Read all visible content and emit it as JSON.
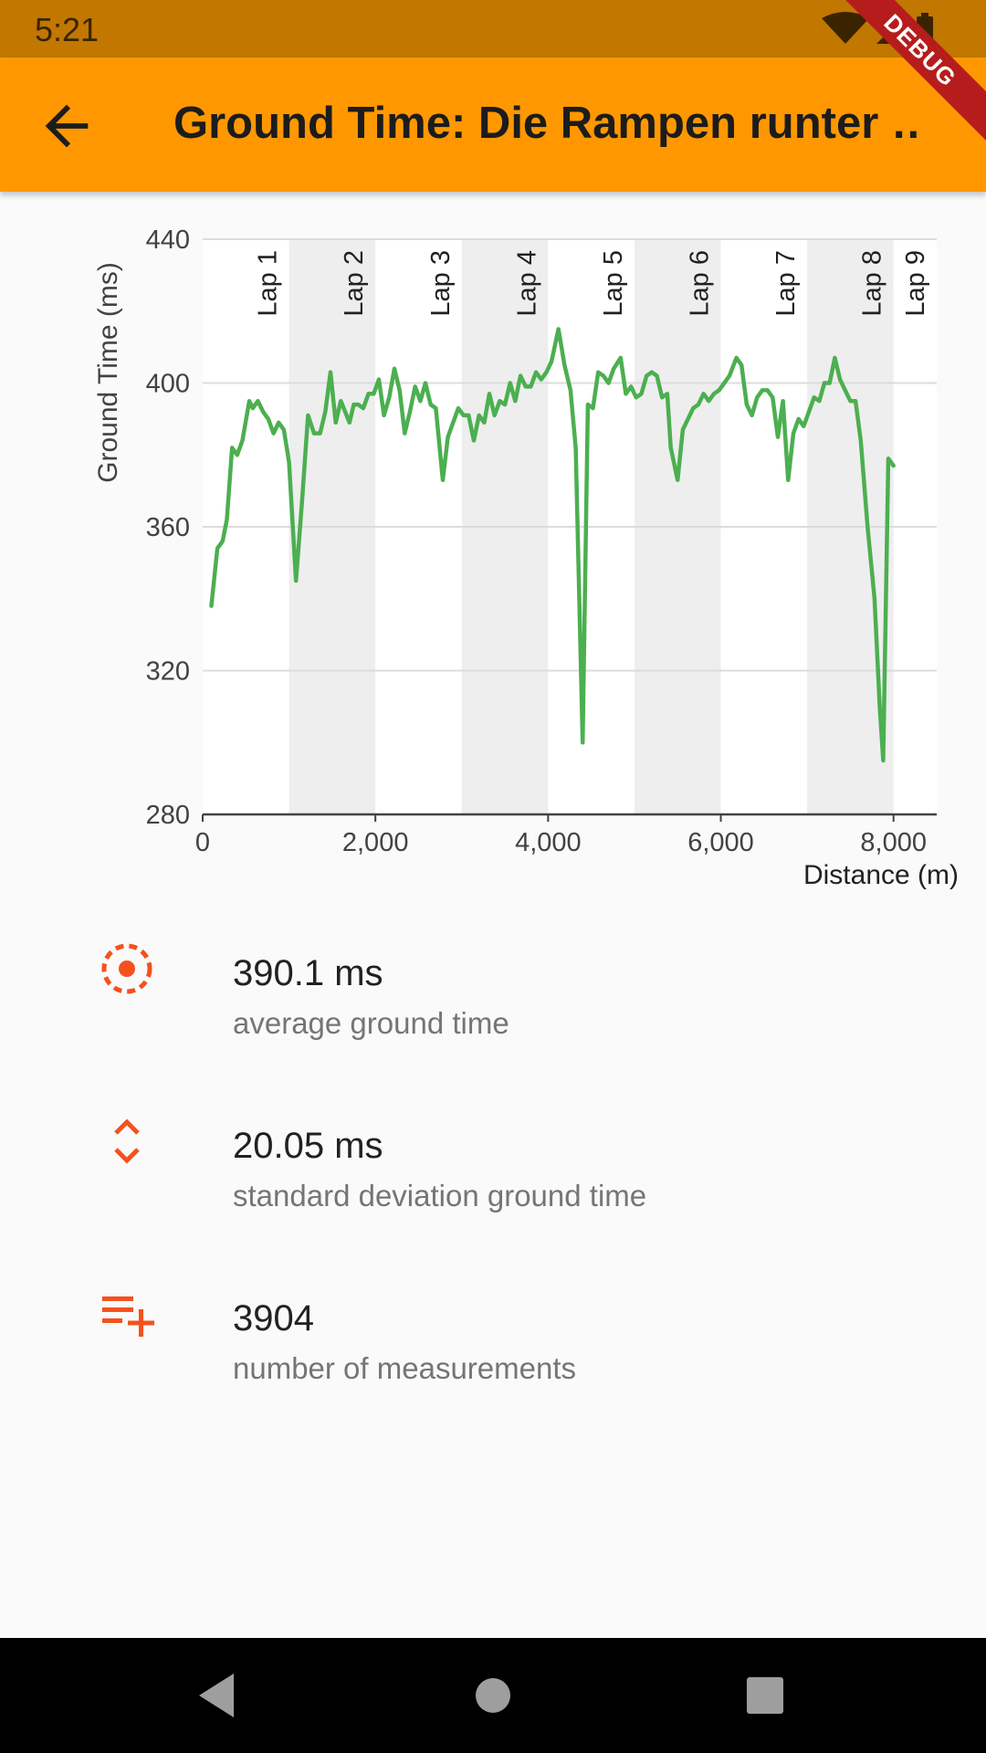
{
  "status_bar": {
    "time": "5:21"
  },
  "app_bar": {
    "title": "Ground Time: Die Rampen runter …"
  },
  "debug_banner": {
    "label": "DEBUG"
  },
  "chart_data": {
    "type": "line",
    "title": "",
    "xlabel": "Distance (m)",
    "ylabel": "Ground Time (ms)",
    "xlim": [
      0,
      8500
    ],
    "ylim": [
      280,
      440
    ],
    "xticks": [
      0,
      2000,
      4000,
      6000,
      8000
    ],
    "xtick_labels": [
      "0",
      "2,000",
      "4,000",
      "6,000",
      "8,000"
    ],
    "yticks": [
      280,
      320,
      360,
      400,
      440
    ],
    "ytick_labels": [
      "280",
      "320",
      "360",
      "400",
      "440"
    ],
    "grid": "horizontal",
    "lap_bands": [
      {
        "label": "Lap 1",
        "start": 0,
        "end": 1000,
        "shaded": false
      },
      {
        "label": "Lap 2",
        "start": 1000,
        "end": 2000,
        "shaded": true
      },
      {
        "label": "Lap 3",
        "start": 2000,
        "end": 3000,
        "shaded": false
      },
      {
        "label": "Lap 4",
        "start": 3000,
        "end": 4000,
        "shaded": true
      },
      {
        "label": "Lap 5",
        "start": 4000,
        "end": 5000,
        "shaded": false
      },
      {
        "label": "Lap 6",
        "start": 5000,
        "end": 6000,
        "shaded": true
      },
      {
        "label": "Lap 7",
        "start": 6000,
        "end": 7000,
        "shaded": false
      },
      {
        "label": "Lap 8",
        "start": 7000,
        "end": 8000,
        "shaded": true
      },
      {
        "label": "Lap 9",
        "start": 8000,
        "end": 8500,
        "shaded": false
      }
    ],
    "series": [
      {
        "color": "#4caf50",
        "points": [
          [
            100,
            338
          ],
          [
            170,
            354
          ],
          [
            230,
            356
          ],
          [
            280,
            362
          ],
          [
            340,
            382
          ],
          [
            400,
            380
          ],
          [
            460,
            384
          ],
          [
            540,
            395
          ],
          [
            580,
            393
          ],
          [
            640,
            395
          ],
          [
            700,
            392
          ],
          [
            760,
            390
          ],
          [
            820,
            386
          ],
          [
            880,
            389
          ],
          [
            940,
            387
          ],
          [
            1000,
            378
          ],
          [
            1080,
            345
          ],
          [
            1150,
            367
          ],
          [
            1220,
            391
          ],
          [
            1290,
            386
          ],
          [
            1360,
            386
          ],
          [
            1420,
            392
          ],
          [
            1480,
            403
          ],
          [
            1540,
            389
          ],
          [
            1600,
            395
          ],
          [
            1650,
            392
          ],
          [
            1700,
            389
          ],
          [
            1750,
            394
          ],
          [
            1800,
            394
          ],
          [
            1860,
            393
          ],
          [
            1920,
            397
          ],
          [
            1980,
            397
          ],
          [
            2040,
            401
          ],
          [
            2100,
            391
          ],
          [
            2160,
            396
          ],
          [
            2220,
            404
          ],
          [
            2280,
            398
          ],
          [
            2340,
            386
          ],
          [
            2400,
            392
          ],
          [
            2460,
            399
          ],
          [
            2520,
            395
          ],
          [
            2580,
            400
          ],
          [
            2640,
            394
          ],
          [
            2700,
            393
          ],
          [
            2780,
            373
          ],
          [
            2840,
            385
          ],
          [
            2900,
            389
          ],
          [
            2960,
            393
          ],
          [
            3020,
            391
          ],
          [
            3080,
            391
          ],
          [
            3140,
            384
          ],
          [
            3200,
            391
          ],
          [
            3260,
            389
          ],
          [
            3320,
            397
          ],
          [
            3380,
            391
          ],
          [
            3440,
            395
          ],
          [
            3500,
            394
          ],
          [
            3560,
            400
          ],
          [
            3620,
            395
          ],
          [
            3680,
            402
          ],
          [
            3740,
            399
          ],
          [
            3800,
            399
          ],
          [
            3860,
            403
          ],
          [
            3920,
            401
          ],
          [
            3980,
            403
          ],
          [
            4040,
            406
          ],
          [
            4120,
            415
          ],
          [
            4190,
            405
          ],
          [
            4260,
            398
          ],
          [
            4320,
            382
          ],
          [
            4400,
            300
          ],
          [
            4460,
            394
          ],
          [
            4520,
            393
          ],
          [
            4580,
            403
          ],
          [
            4640,
            402
          ],
          [
            4700,
            400
          ],
          [
            4760,
            404
          ],
          [
            4840,
            407
          ],
          [
            4900,
            397
          ],
          [
            4960,
            399
          ],
          [
            5020,
            396
          ],
          [
            5080,
            397
          ],
          [
            5140,
            402
          ],
          [
            5200,
            403
          ],
          [
            5260,
            402
          ],
          [
            5320,
            396
          ],
          [
            5380,
            397
          ],
          [
            5420,
            382
          ],
          [
            5500,
            373
          ],
          [
            5560,
            387
          ],
          [
            5620,
            390
          ],
          [
            5680,
            393
          ],
          [
            5740,
            394
          ],
          [
            5800,
            397
          ],
          [
            5860,
            395
          ],
          [
            5920,
            397
          ],
          [
            5980,
            398
          ],
          [
            6040,
            400
          ],
          [
            6100,
            402
          ],
          [
            6180,
            407
          ],
          [
            6240,
            405
          ],
          [
            6300,
            394
          ],
          [
            6360,
            391
          ],
          [
            6420,
            396
          ],
          [
            6480,
            398
          ],
          [
            6540,
            398
          ],
          [
            6600,
            396
          ],
          [
            6660,
            385
          ],
          [
            6720,
            395
          ],
          [
            6780,
            373
          ],
          [
            6840,
            386
          ],
          [
            6900,
            390
          ],
          [
            6960,
            388
          ],
          [
            7020,
            392
          ],
          [
            7080,
            396
          ],
          [
            7140,
            395
          ],
          [
            7200,
            400
          ],
          [
            7260,
            400
          ],
          [
            7320,
            407
          ],
          [
            7380,
            401
          ],
          [
            7440,
            398
          ],
          [
            7500,
            395
          ],
          [
            7560,
            395
          ],
          [
            7620,
            384
          ],
          [
            7700,
            360
          ],
          [
            7780,
            340
          ],
          [
            7840,
            310
          ],
          [
            7880,
            295
          ],
          [
            7940,
            379
          ],
          [
            8000,
            377
          ]
        ]
      }
    ]
  },
  "stats": [
    {
      "icon": "track-changes-icon",
      "value": "390.1 ms",
      "label": "average ground time"
    },
    {
      "icon": "unfold-more-icon",
      "value": "20.05 ms",
      "label": "standard deviation ground time"
    },
    {
      "icon": "playlist-add-icon",
      "value": "3904",
      "label": "number of measurements"
    }
  ],
  "colors": {
    "accent": "#f4511e",
    "app_bar": "#ff9800",
    "status_bar": "#c17700",
    "line": "#4caf50",
    "lap_band": "#eeeeee"
  }
}
